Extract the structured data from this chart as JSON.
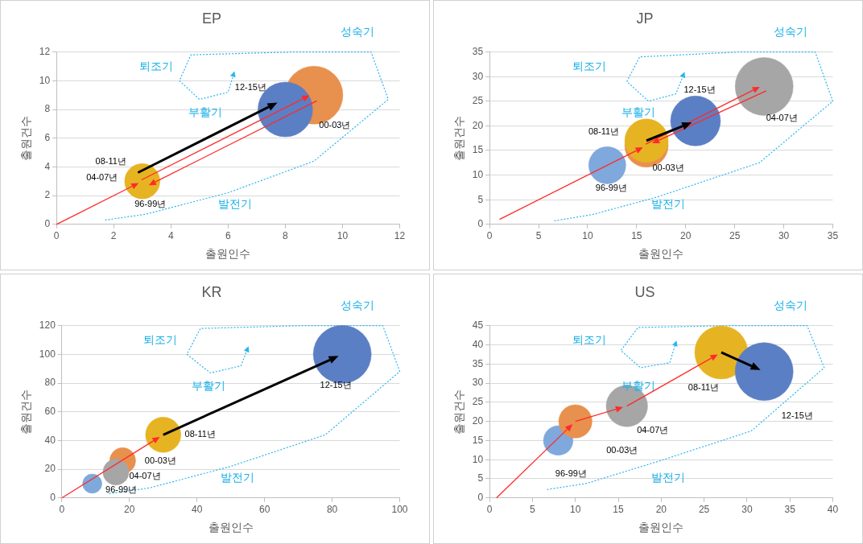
{
  "chart_data": [
    {
      "type": "bubble",
      "title": "EP",
      "xlabel": "출원인수",
      "ylabel": "출원건수",
      "xlim": [
        0,
        12
      ],
      "xticks": [
        0,
        2,
        4,
        6,
        8,
        10,
        12
      ],
      "ylim": [
        0,
        12
      ],
      "yticks": [
        0,
        2,
        4,
        6,
        8,
        10,
        12
      ],
      "grid": "y",
      "annotations": [
        "성숙기",
        "퇴조기",
        "부활기",
        "발전기"
      ],
      "series": [
        {
          "name": "96-99년",
          "color": "#e6b422",
          "x": [
            3
          ],
          "values": [
            3
          ],
          "sizes": [
            0.36
          ]
        },
        {
          "name": "00-03년",
          "color": "#e8904e",
          "x": [
            9
          ],
          "values": [
            9
          ],
          "sizes": [
            1
          ]
        },
        {
          "name": "04-07년",
          "color": "#e6b422",
          "x": [
            3
          ],
          "values": [
            3
          ],
          "sizes": [
            0.36
          ]
        },
        {
          "name": "08-11년",
          "color": "#e6b422",
          "x": [
            3
          ],
          "values": [
            3
          ],
          "sizes": [
            0.36
          ]
        },
        {
          "name": "12-15년",
          "color": "#5b7fc4",
          "x": [
            8
          ],
          "values": [
            8
          ],
          "sizes": [
            0.89
          ]
        },
        {
          "type": "line",
          "color": "#29b6f0",
          "line_style": "dotted",
          "marker": "none",
          "x": [
            1.7,
            3.1,
            6,
            9,
            11.6,
            11,
            8.3,
            4.7,
            4.3,
            5,
            6,
            6.2
          ],
          "values": [
            0.3,
            0.7,
            2.2,
            4.4,
            8.7,
            12,
            12,
            11.8,
            10,
            8.7,
            9.2,
            10.5
          ]
        }
      ]
    },
    {
      "type": "bubble",
      "title": "JP",
      "xlabel": "출원인수",
      "ylabel": "출원건수",
      "xlim": [
        0,
        35
      ],
      "xticks": [
        0,
        5,
        10,
        15,
        20,
        25,
        30,
        35
      ],
      "ylim": [
        0,
        35
      ],
      "yticks": [
        0,
        5,
        10,
        15,
        20,
        25,
        30,
        35
      ],
      "grid": "y",
      "annotations": [
        "성숙기",
        "퇴조기",
        "부활기",
        "발전기"
      ],
      "series": [
        {
          "name": "96-99년",
          "color": "#7fa8dc",
          "x": [
            12
          ],
          "values": [
            12
          ],
          "sizes": [
            0.41
          ]
        },
        {
          "name": "00-03년",
          "color": "#e8904e",
          "x": [
            16
          ],
          "values": [
            16
          ],
          "sizes": [
            0.56
          ]
        },
        {
          "name": "04-07년",
          "color": "#a6a6a6",
          "x": [
            28
          ],
          "values": [
            28
          ],
          "sizes": [
            1
          ]
        },
        {
          "name": "08-11년",
          "color": "#e6b422",
          "x": [
            16
          ],
          "values": [
            17
          ],
          "sizes": [
            0.56
          ]
        },
        {
          "name": "12-15년",
          "color": "#5b7fc4",
          "x": [
            21
          ],
          "values": [
            21
          ],
          "sizes": [
            0.74
          ]
        },
        {
          "type": "line",
          "color": "#29b6f0",
          "line_style": "dotted",
          "marker": "none",
          "x": [
            6.6,
            10.5,
            17,
            27.5,
            35,
            33.2,
            25.5,
            15.3,
            14,
            16.2,
            19,
            19.8
          ],
          "values": [
            0.7,
            2,
            5.5,
            12.5,
            25,
            35,
            35,
            34,
            29,
            25,
            26.5,
            30.5
          ]
        }
      ]
    },
    {
      "type": "bubble",
      "title": "KR",
      "xlabel": "출원인수",
      "ylabel": "출원건수",
      "xlim": [
        0,
        100
      ],
      "xticks": [
        0,
        20,
        40,
        60,
        80,
        100
      ],
      "ylim": [
        0,
        120
      ],
      "yticks": [
        0,
        20,
        40,
        60,
        80,
        100,
        120
      ],
      "grid": "y",
      "annotations": [
        "성숙기",
        "퇴조기",
        "부활기",
        "발전기"
      ],
      "series": [
        {
          "name": "96-99년",
          "color": "#7fa8dc",
          "x": [
            9
          ],
          "values": [
            10
          ],
          "sizes": [
            0.11
          ]
        },
        {
          "name": "00-03년",
          "color": "#e8904e",
          "x": [
            18
          ],
          "values": [
            26
          ],
          "sizes": [
            0.2
          ]
        },
        {
          "name": "04-07년",
          "color": "#a6a6a6",
          "x": [
            16
          ],
          "values": [
            18
          ],
          "sizes": [
            0.2
          ]
        },
        {
          "name": "08-11년",
          "color": "#e6b422",
          "x": [
            30
          ],
          "values": [
            44
          ],
          "sizes": [
            0.37
          ]
        },
        {
          "name": "12-15년",
          "color": "#5b7fc4",
          "x": [
            83
          ],
          "values": [
            100
          ],
          "sizes": [
            1
          ]
        },
        {
          "type": "line",
          "color": "#29b6f0",
          "line_style": "dotted",
          "marker": "none",
          "x": [
            14,
            26,
            50,
            78,
            100,
            95,
            72,
            41,
            37,
            44,
            53,
            55
          ],
          "values": [
            3,
            7,
            22,
            44,
            88,
            120,
            120,
            118,
            100,
            87,
            92,
            104
          ]
        }
      ]
    },
    {
      "type": "bubble",
      "title": "US",
      "xlabel": "출원인수",
      "ylabel": "출원건수",
      "xlim": [
        0,
        40
      ],
      "xticks": [
        0,
        5,
        10,
        15,
        20,
        25,
        30,
        35,
        40
      ],
      "ylim": [
        0,
        45
      ],
      "yticks": [
        0,
        5,
        10,
        15,
        20,
        25,
        30,
        35,
        40,
        45
      ],
      "grid": "y",
      "annotations": [
        "성숙기",
        "퇴조기",
        "부활기",
        "발전기"
      ],
      "series": [
        {
          "name": "96-99년",
          "color": "#7fa8dc",
          "x": [
            8
          ],
          "values": [
            15
          ],
          "sizes": [
            0.26
          ]
        },
        {
          "name": "00-03년",
          "color": "#e8904e",
          "x": [
            10
          ],
          "values": [
            20
          ],
          "sizes": [
            0.33
          ]
        },
        {
          "name": "04-07년",
          "color": "#a6a6a6",
          "x": [
            16
          ],
          "values": [
            24
          ],
          "sizes": [
            0.51
          ]
        },
        {
          "name": "08-11년",
          "color": "#e6b422",
          "x": [
            27
          ],
          "values": [
            38
          ],
          "sizes": [
            0.84
          ]
        },
        {
          "name": "12-15년",
          "color": "#5b7fc4",
          "x": [
            32
          ],
          "values": [
            33
          ],
          "sizes": [
            1
          ]
        },
        {
          "type": "line",
          "color": "#29b6f0",
          "line_style": "dotted",
          "marker": "none",
          "x": [
            6.7,
            11.3,
            20,
            30.5,
            39,
            37,
            28.3,
            17.3,
            15.3,
            17.6,
            21,
            21.7
          ],
          "values": [
            2.2,
            3.8,
            9.8,
            17.5,
            34,
            45,
            45,
            44.5,
            38.5,
            34,
            35.3,
            40.5
          ]
        }
      ]
    }
  ]
}
